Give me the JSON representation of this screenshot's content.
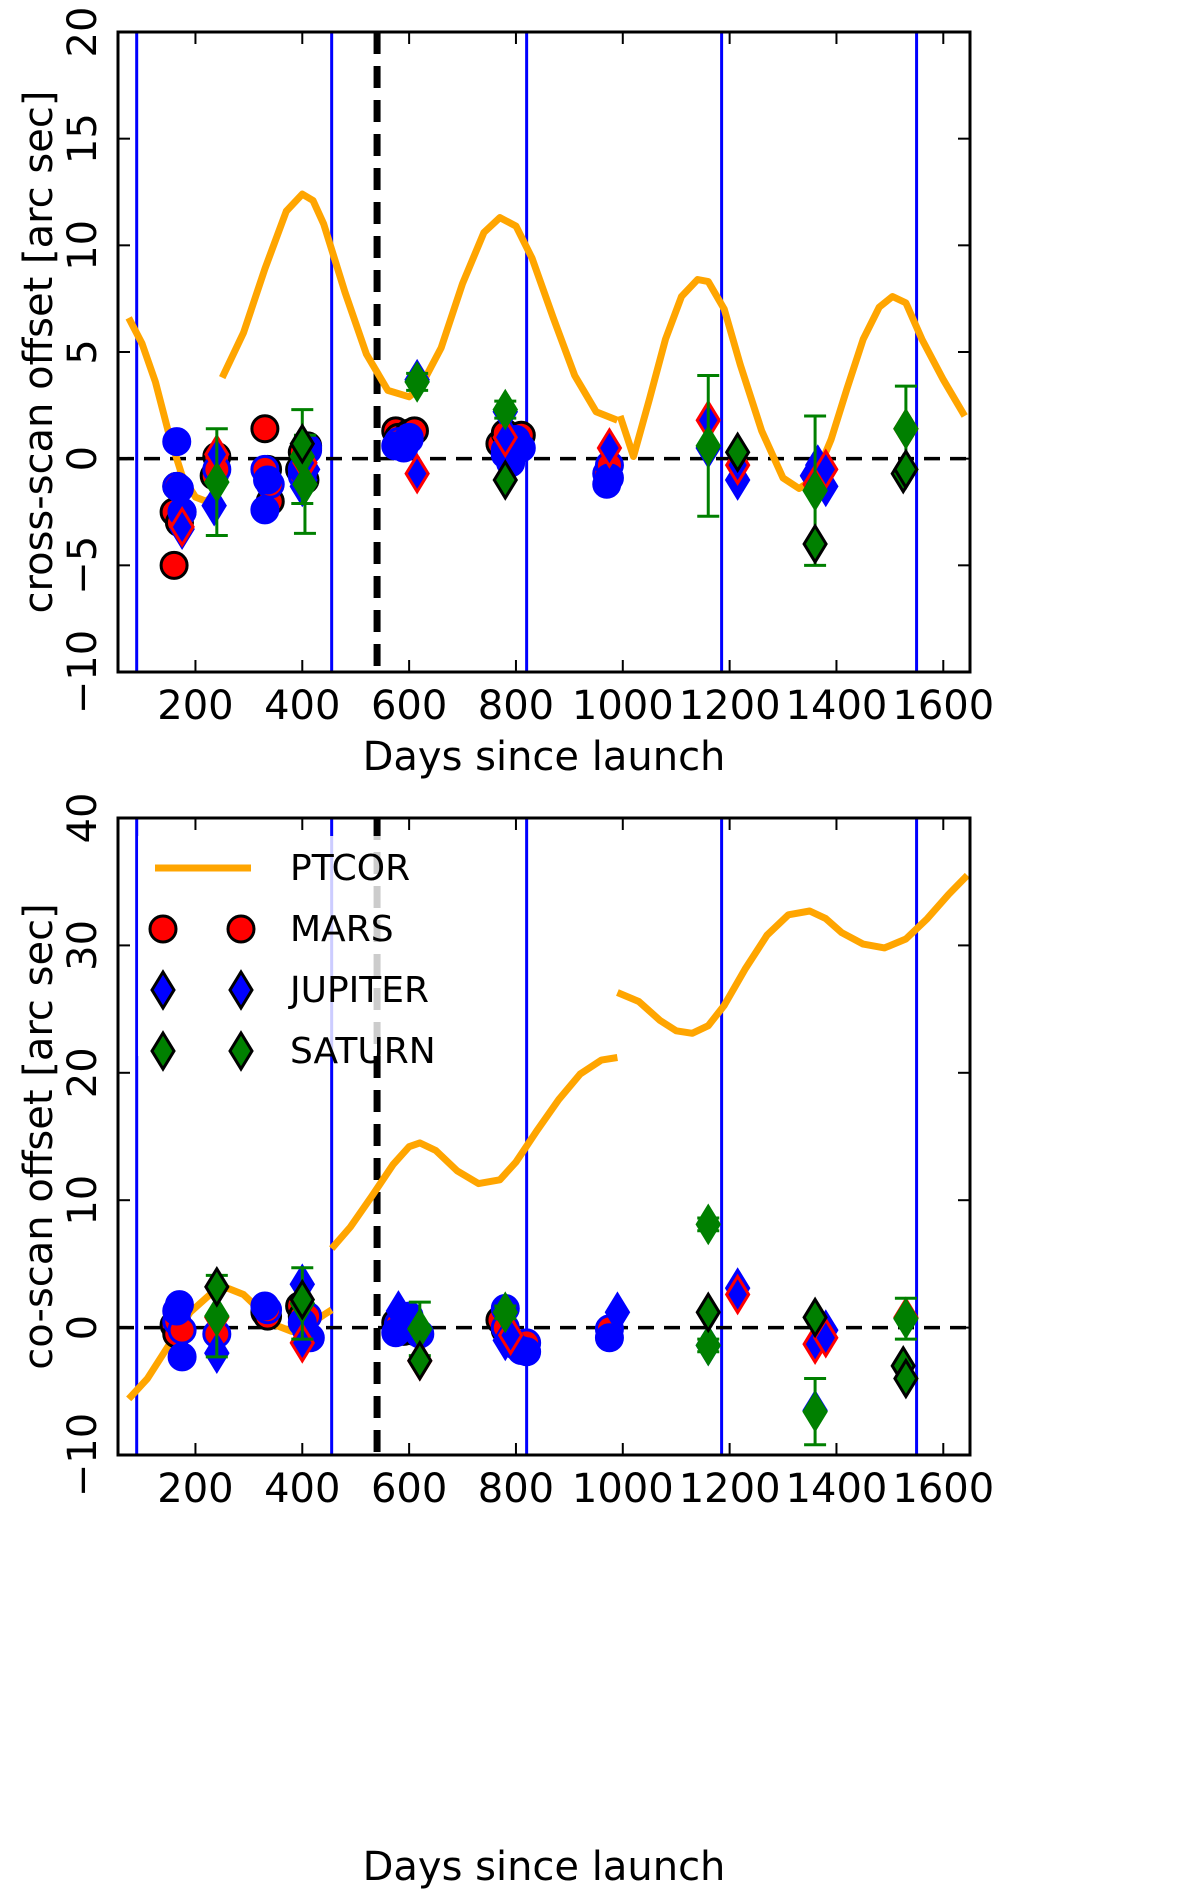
{
  "chart_data": [
    {
      "type": "scatter",
      "panel": "top",
      "xlabel": "Days since launch",
      "ylabel": "cross-scan offset [arc sec]",
      "xlim": [
        55,
        1650
      ],
      "ylim": [
        -10,
        20
      ],
      "xticks": [
        200,
        400,
        600,
        800,
        1000,
        1200,
        1400,
        1600
      ],
      "yticks": [
        -10,
        -5,
        0,
        5,
        10,
        15,
        20
      ],
      "xtick_labels": [
        "200",
        "400",
        "600",
        "800",
        "1000",
        "1200",
        "1400",
        "1600"
      ],
      "ytick_labels": [
        "−10",
        "−5",
        "0",
        "5",
        "10",
        "15",
        "20"
      ],
      "zero_line": 0,
      "vlines_blue": [
        90,
        455,
        820,
        1185,
        1550
      ],
      "vline_dashed": 540,
      "ptcor_segments": [
        {
          "x": [
            75,
            100,
            125,
            150,
            175,
            200,
            220,
            240
          ],
          "y": [
            6.6,
            5.4,
            3.6,
            1.2,
            -0.8,
            -1.8,
            -2.0,
            -1.6
          ]
        },
        {
          "x": [
            250,
            290,
            330,
            370,
            400,
            420,
            440,
            480,
            520,
            560,
            600,
            620
          ],
          "y": [
            3.8,
            5.9,
            8.9,
            11.6,
            12.4,
            12.1,
            11.0,
            7.8,
            4.9,
            3.2,
            2.9,
            3.3
          ]
        },
        {
          "x": [
            620,
            660,
            700,
            740,
            770,
            800,
            830,
            870,
            910,
            950,
            990
          ],
          "y": [
            3.3,
            5.2,
            8.2,
            10.6,
            11.3,
            10.9,
            9.4,
            6.6,
            3.9,
            2.2,
            1.8
          ]
        },
        {
          "x": [
            995,
            1020,
            1050,
            1080,
            1110,
            1140,
            1160,
            1190,
            1220,
            1260,
            1300,
            1330,
            1360
          ],
          "y": [
            2.0,
            0.1,
            2.8,
            5.6,
            7.6,
            8.4,
            8.3,
            7.0,
            4.4,
            1.3,
            -0.9,
            -1.4,
            -0.9
          ]
        },
        {
          "x": [
            1360,
            1390,
            1420,
            1450,
            1480,
            1505,
            1530,
            1560,
            1600,
            1640
          ],
          "y": [
            -0.9,
            0.9,
            3.3,
            5.6,
            7.1,
            7.6,
            7.3,
            5.6,
            3.7,
            2.0
          ]
        }
      ],
      "series": [
        {
          "name": "MARS",
          "marker": "circle",
          "color": "#ff0000",
          "edge": "#000000",
          "x": [
            160,
            160,
            165,
            170,
            235,
            240,
            330,
            335,
            340,
            395,
            400,
            405,
            410,
            575,
            580,
            590,
            600,
            610,
            770,
            780,
            790,
            800,
            810
          ],
          "y": [
            -5.0,
            -2.5,
            -1.3,
            -3.0,
            -0.8,
            0.1,
            1.4,
            -0.5,
            -2.0,
            -0.5,
            0.3,
            -1.0,
            0.6,
            1.3,
            1.0,
            0.9,
            1.2,
            1.3,
            0.7,
            1.2,
            0.5,
            0.9,
            1.1
          ]
        },
        {
          "name": "MARS_b",
          "marker": "circle",
          "color": "#ff0000",
          "edge": "#0000ff",
          "x": [
            165,
            175,
            240,
            330,
            340,
            400,
            410,
            580,
            600,
            780,
            800,
            970,
            975
          ],
          "y": [
            -1.3,
            -2.5,
            -0.5,
            -0.5,
            -1.2,
            -0.8,
            0.4,
            0.8,
            1.0,
            0.2,
            0.6,
            -0.7,
            -0.3
          ]
        },
        {
          "name": "MARS_c",
          "marker": "circle",
          "color": "#0000ff",
          "edge": "#0000ff",
          "x": [
            165,
            170,
            175,
            330,
            335,
            400,
            410,
            575,
            590,
            600,
            780,
            790,
            800,
            810,
            970,
            975
          ],
          "y": [
            0.8,
            -1.4,
            -2.5,
            -2.4,
            -1.0,
            -0.5,
            0.5,
            0.6,
            0.5,
            0.9,
            0.4,
            -0.2,
            0.9,
            0.5,
            -1.2,
            -0.9
          ]
        },
        {
          "name": "JUPITER",
          "marker": "diamond",
          "color": "#0000ff",
          "edge": "#0000ff",
          "x": [
            175,
            235,
            400,
            405,
            410,
            615,
            780,
            790,
            1160,
            1215,
            1355,
            1365,
            1380
          ],
          "y": [
            -3.3,
            -2.2,
            -1.3,
            -1.0,
            -0.5,
            3.7,
            2.2,
            0.8,
            0.5,
            -1.0,
            -0.8,
            -0.3,
            -1.3
          ]
        },
        {
          "name": "JUPITER_r",
          "marker": "diamond",
          "color": "#0000ff",
          "edge": "#ff0000",
          "x": [
            175,
            240,
            405,
            615,
            780,
            975,
            1160,
            1215,
            1360,
            1380,
            1530
          ],
          "y": [
            -3.2,
            0.2,
            -0.2,
            -0.7,
            1.0,
            0.5,
            1.8,
            -0.3,
            -1.2,
            -0.5,
            1.4
          ]
        },
        {
          "name": "SATURN",
          "marker": "diamond",
          "color": "#008000",
          "edge": "#008000",
          "x": [
            240,
            400,
            405,
            615,
            780,
            1160,
            1360,
            1530
          ],
          "y": [
            -1.1,
            0.1,
            -1.2,
            3.6,
            2.3,
            0.6,
            -1.5,
            1.4
          ],
          "err": [
            2.5,
            2.2,
            2.3,
            0.4,
            0.4,
            3.3,
            3.5,
            2.0
          ]
        },
        {
          "name": "SATURN_k",
          "marker": "diamond",
          "color": "#008000",
          "edge": "#000000",
          "x": [
            400,
            780,
            1215,
            1360,
            1525,
            1530
          ],
          "y": [
            0.7,
            -1.0,
            0.3,
            -4.0,
            -0.7,
            -0.5
          ]
        }
      ]
    },
    {
      "type": "scatter",
      "panel": "bottom",
      "xlabel": "Days since launch",
      "ylabel": "co-scan offset [arc sec]",
      "xlim": [
        55,
        1650
      ],
      "ylim": [
        -10,
        40
      ],
      "xticks": [
        200,
        400,
        600,
        800,
        1000,
        1200,
        1400,
        1600
      ],
      "yticks": [
        -10,
        0,
        10,
        20,
        30,
        40
      ],
      "xtick_labels": [
        "200",
        "400",
        "600",
        "800",
        "1000",
        "1200",
        "1400",
        "1600"
      ],
      "ytick_labels": [
        "−10",
        "0",
        "10",
        "20",
        "30",
        "40"
      ],
      "zero_line": 0,
      "vlines_blue": [
        90,
        455,
        820,
        1185,
        1550
      ],
      "vline_dashed": 540,
      "ptcor_segments": [
        {
          "x": [
            75,
            110,
            150,
            190,
            230,
            260,
            290,
            320,
            350,
            380,
            410,
            440,
            455
          ],
          "y": [
            -5.6,
            -4.0,
            -1.4,
            1.2,
            2.7,
            3.1,
            2.6,
            1.4,
            0.2,
            -0.3,
            0.1,
            1.0,
            1.4
          ]
        },
        {
          "x": [
            455,
            490,
            530,
            570,
            600,
            620,
            650,
            690,
            730,
            770,
            800,
            840,
            880,
            920,
            960,
            990
          ],
          "y": [
            6.2,
            7.9,
            10.3,
            12.8,
            14.2,
            14.5,
            13.9,
            12.3,
            11.3,
            11.6,
            13.0,
            15.5,
            17.9,
            19.9,
            21.0,
            21.2
          ]
        },
        {
          "x": [
            990,
            1030,
            1070,
            1100,
            1130,
            1160,
            1190,
            1230,
            1270,
            1310,
            1350,
            1380,
            1410,
            1450,
            1490,
            1530,
            1570,
            1610,
            1645
          ],
          "y": [
            26.3,
            25.6,
            24.1,
            23.3,
            23.1,
            23.7,
            25.3,
            28.2,
            30.8,
            32.4,
            32.7,
            32.1,
            31.0,
            30.1,
            29.8,
            30.5,
            32.1,
            34.0,
            35.5
          ]
        }
      ],
      "series": [
        {
          "name": "MARS",
          "marker": "circle",
          "color": "#ff0000",
          "edge": "#000000",
          "x": [
            160,
            165,
            330,
            335,
            395,
            400,
            575,
            580,
            590,
            610,
            770,
            780
          ],
          "y": [
            0.2,
            -0.5,
            1.2,
            0.9,
            1.7,
            0.9,
            0.4,
            0.1,
            -0.3,
            -0.3,
            0.6,
            -0.2
          ]
        },
        {
          "name": "MARS_b",
          "marker": "circle",
          "color": "#ff0000",
          "edge": "#0000ff",
          "x": [
            165,
            175,
            240,
            335,
            410,
            580,
            600,
            780,
            800,
            820,
            975
          ],
          "y": [
            0.5,
            -0.2,
            -0.5,
            1.4,
            0.9,
            0.3,
            0.4,
            0.0,
            -1.4,
            -1.2,
            -0.1
          ]
        },
        {
          "name": "MARS_c",
          "marker": "circle",
          "color": "#0000ff",
          "edge": "#0000ff",
          "x": [
            165,
            170,
            175,
            330,
            400,
            415,
            575,
            600,
            620,
            780,
            790,
            810,
            820,
            975
          ],
          "y": [
            1.3,
            1.8,
            -2.3,
            1.7,
            0.4,
            -0.8,
            -0.4,
            0.9,
            -0.5,
            1.5,
            -1.1,
            -1.8,
            -1.9,
            -0.8
          ]
        },
        {
          "name": "JUPITER",
          "marker": "diamond",
          "color": "#0000ff",
          "edge": "#0000ff",
          "x": [
            240,
            400,
            405,
            580,
            780,
            990,
            1160,
            1215,
            1360,
            1380
          ],
          "y": [
            -2.0,
            3.4,
            -0.5,
            1.3,
            -1.0,
            1.2,
            -1.4,
            3.1,
            -6.5,
            -0.2
          ]
        },
        {
          "name": "JUPITER_r",
          "marker": "diamond",
          "color": "#0000ff",
          "edge": "#ff0000",
          "x": [
            240,
            400,
            620,
            790,
            1215,
            1360,
            1380,
            1530
          ],
          "y": [
            0.8,
            -1.2,
            -2.6,
            -0.6,
            2.6,
            -1.3,
            -0.8,
            0.8
          ]
        },
        {
          "name": "SATURN",
          "marker": "diamond",
          "color": "#008000",
          "edge": "#008000",
          "x": [
            240,
            400,
            620,
            780,
            1160,
            1160,
            1360,
            1530
          ],
          "y": [
            0.9,
            1.9,
            -0.1,
            1.2,
            8.1,
            -1.4,
            -6.6,
            0.7
          ],
          "err": [
            3.2,
            2.8,
            2.1,
            0.5,
            0.5,
            0.5,
            2.6,
            1.6
          ]
        },
        {
          "name": "SATURN_k",
          "marker": "diamond",
          "color": "#008000",
          "edge": "#000000",
          "x": [
            240,
            400,
            620,
            1160,
            1360,
            1525,
            1530
          ],
          "y": [
            3.2,
            2.2,
            -2.6,
            1.2,
            0.8,
            -3.0,
            -4.0
          ]
        }
      ],
      "legend": {
        "placement": "top-left",
        "entries": [
          {
            "label": "PTCOR",
            "kind": "line",
            "color": "#ffa500"
          },
          {
            "label": "MARS",
            "kind": "circle",
            "color": "#ff0000",
            "edge": "#000000"
          },
          {
            "label": "JUPITER",
            "kind": "diamond",
            "color": "#0000ff",
            "edge": "#000000"
          },
          {
            "label": "SATURN",
            "kind": "diamond",
            "color": "#008000",
            "edge": "#000000"
          }
        ]
      }
    }
  ]
}
